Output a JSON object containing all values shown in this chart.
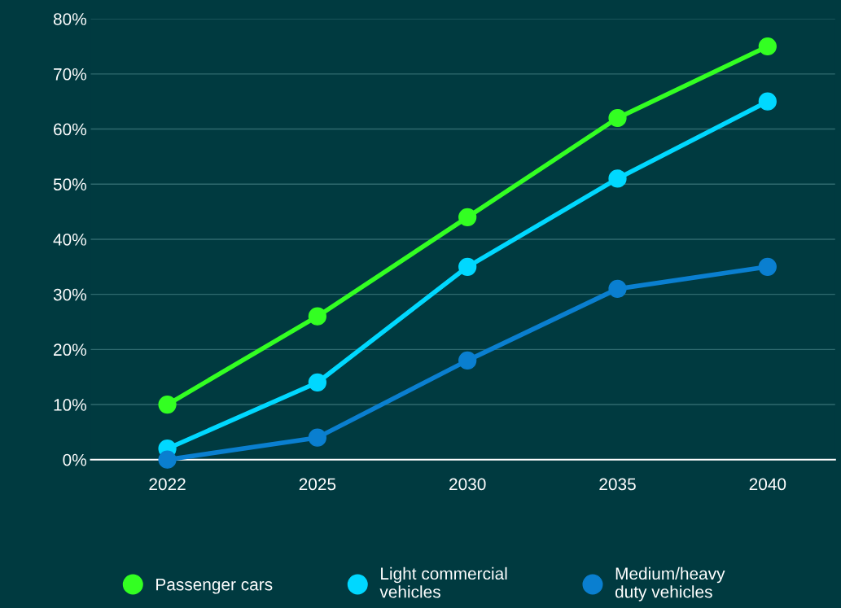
{
  "chart_data": {
    "type": "line",
    "categories": [
      "2022",
      "2025",
      "2030",
      "2035",
      "2040"
    ],
    "series": [
      {
        "name": "Passenger cars",
        "color": "#33ff22",
        "values": [
          10,
          26,
          44,
          62,
          75
        ]
      },
      {
        "name": "Light commercial vehicles",
        "color": "#00d8ff",
        "values": [
          2,
          14,
          35,
          51,
          65
        ]
      },
      {
        "name": "Medium/heavy duty vehicles",
        "color": "#0a7fd0",
        "values": [
          0,
          4,
          18,
          31,
          35
        ]
      }
    ],
    "ylim": [
      0,
      80
    ],
    "yticks": [
      {
        "value": 0,
        "label": "0%"
      },
      {
        "value": 10,
        "label": "10%"
      },
      {
        "value": 20,
        "label": "20%"
      },
      {
        "value": 30,
        "label": "30%"
      },
      {
        "value": 40,
        "label": "40%"
      },
      {
        "value": 50,
        "label": "50%"
      },
      {
        "value": 60,
        "label": "60%"
      },
      {
        "value": 70,
        "label": "70%"
      },
      {
        "value": 80,
        "label": "80%"
      }
    ],
    "grid": "y",
    "legend": "bottom",
    "marker": "circle",
    "line_style": "solid"
  }
}
